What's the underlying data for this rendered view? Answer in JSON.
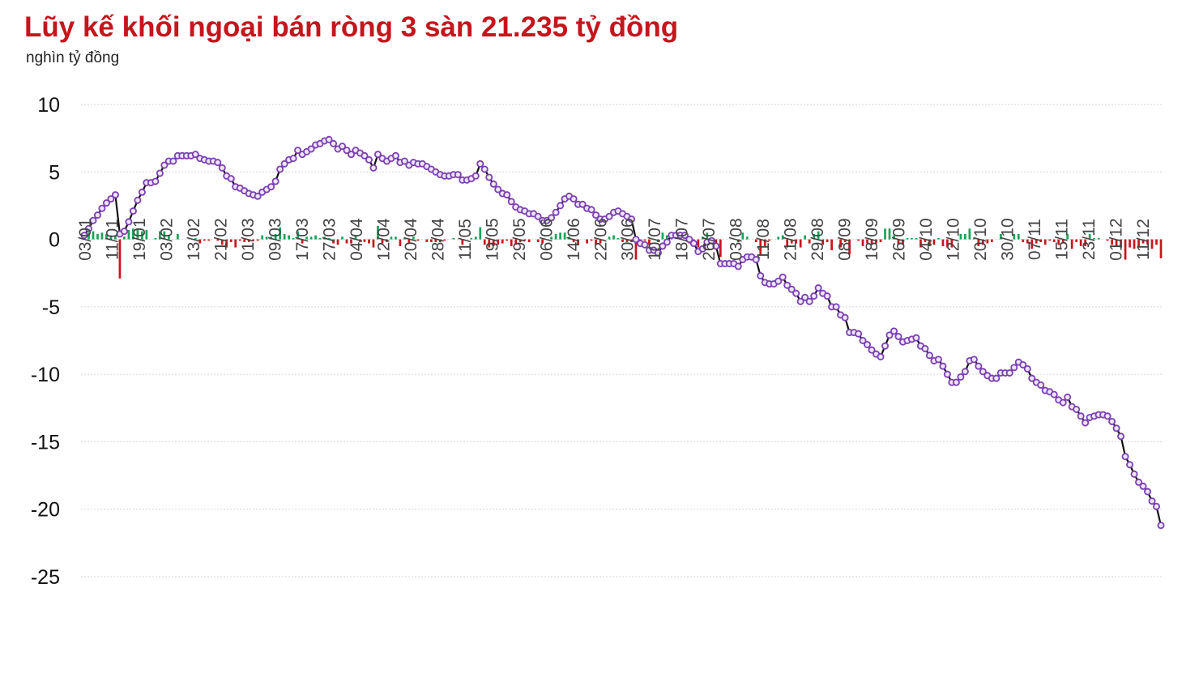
{
  "title": "Lũy kế khối ngoại bán ròng 3 sàn 21.235 tỷ đồng",
  "unit_label": "nghìn tỷ đồng",
  "colors": {
    "title": "#c4161c",
    "line": "#111111",
    "marker_stroke": "#7b3fb3",
    "marker_fill": "#ece6f5",
    "bar_positive": "#1aa35a",
    "bar_negative": "#c8161e",
    "grid": "#d6d6d6"
  },
  "chart_data": {
    "type": "line",
    "title": "Lũy kế khối ngoại bán ròng 3 sàn 21.235 tỷ đồng",
    "ylabel": "nghìn tỷ đồng",
    "ylim": [
      -25,
      10
    ],
    "yticks": [
      10,
      5,
      0,
      -5,
      -10,
      -15,
      -20,
      -25
    ],
    "grid": true,
    "x_tick_labels": [
      "03/01",
      "11/01",
      "19/01",
      "03/02",
      "13/02",
      "21/02",
      "01/03",
      "09/03",
      "17/03",
      "27/03",
      "04/04",
      "12/04",
      "20/04",
      "28/04",
      "11/05",
      "19/05",
      "29/05",
      "06/06",
      "14/06",
      "22/06",
      "30/06",
      "10/07",
      "18/07",
      "26/07",
      "03/08",
      "11/08",
      "21/08",
      "29/08",
      "08/09",
      "18/09",
      "26/09",
      "04/10",
      "12/10",
      "20/10",
      "30/10",
      "07/11",
      "15/11",
      "23/11",
      "01/12",
      "11/12"
    ],
    "series": [
      {
        "type": "line",
        "values": [
          0.3,
          0.8,
          1.4,
          1.8,
          2.3,
          2.7,
          3.0,
          3.3,
          0.4,
          0.6,
          1.3,
          2.1,
          2.9,
          3.5,
          4.2,
          4.2,
          4.3,
          4.9,
          5.5,
          5.8,
          5.8,
          6.2,
          6.2,
          6.2,
          6.2,
          6.3,
          6.0,
          5.9,
          5.8,
          5.8,
          5.7,
          5.3,
          4.7,
          4.5,
          3.9,
          3.8,
          3.6,
          3.4,
          3.3,
          3.2,
          3.5,
          3.7,
          3.9,
          4.3,
          5.2,
          5.6,
          5.9,
          6.0,
          6.6,
          6.3,
          6.5,
          6.7,
          7.0,
          7.1,
          7.3,
          7.4,
          7.1,
          6.7,
          6.9,
          6.6,
          6.3,
          6.6,
          6.4,
          6.2,
          5.9,
          5.3,
          6.3,
          6.0,
          5.8,
          6.0,
          6.2,
          5.7,
          5.8,
          5.5,
          5.7,
          5.6,
          5.6,
          5.4,
          5.2,
          5.0,
          4.8,
          4.7,
          4.7,
          4.8,
          4.8,
          4.4,
          4.4,
          4.5,
          4.7,
          5.6,
          5.2,
          4.6,
          4.1,
          3.7,
          3.4,
          3.3,
          2.8,
          2.4,
          2.2,
          2.1,
          1.9,
          1.9,
          1.7,
          1.4,
          1.4,
          1.6,
          2.0,
          2.5,
          3.0,
          3.2,
          3.0,
          2.6,
          2.6,
          2.3,
          2.2,
          1.8,
          1.5,
          1.5,
          1.7,
          2.0,
          2.1,
          1.9,
          1.7,
          1.5,
          0.0,
          -0.3,
          -0.4,
          -0.8,
          -0.8,
          -1.0,
          -0.5,
          -0.2,
          0.3,
          0.3,
          0.3,
          0.3,
          0.0,
          -0.3,
          -0.9,
          -0.7,
          -0.2,
          -0.1,
          -0.5,
          -1.8,
          -1.8,
          -1.8,
          -1.8,
          -2.0,
          -1.5,
          -1.3,
          -1.3,
          -1.5,
          -2.7,
          -3.2,
          -3.3,
          -3.3,
          -3.1,
          -2.8,
          -3.4,
          -3.7,
          -4.0,
          -4.6,
          -4.3,
          -4.6,
          -4.2,
          -3.6,
          -4.0,
          -4.2,
          -5.0,
          -5.0,
          -5.6,
          -5.8,
          -6.9,
          -6.9,
          -7.0,
          -7.5,
          -7.8,
          -8.2,
          -8.5,
          -8.7,
          -7.9,
          -7.1,
          -6.8,
          -7.2,
          -7.6,
          -7.5,
          -7.4,
          -7.3,
          -7.9,
          -8.1,
          -8.6,
          -9.0,
          -8.9,
          -9.4,
          -10.0,
          -10.6,
          -10.6,
          -10.2,
          -9.8,
          -9.0,
          -8.9,
          -9.4,
          -9.8,
          -10.1,
          -10.3,
          -10.3,
          -9.9,
          -9.9,
          -9.9,
          -9.5,
          -9.1,
          -9.3,
          -9.6,
          -10.3,
          -10.6,
          -10.8,
          -11.2,
          -11.3,
          -11.5,
          -11.9,
          -12.1,
          -11.7,
          -12.4,
          -12.6,
          -13.1,
          -13.6,
          -13.2,
          -13.1,
          -13.0,
          -13.0,
          -13.1,
          -13.5,
          -14.0,
          -14.6,
          -16.1,
          -16.7,
          -17.4,
          -18.0,
          -18.3,
          -18.7,
          -19.4,
          -19.8,
          -21.2
        ]
      },
      {
        "type": "bar",
        "values": [
          0.3,
          0.5,
          0.6,
          0.4,
          0.5,
          0.4,
          0.3,
          0.3,
          -2.9,
          0.2,
          0.7,
          0.8,
          0.8,
          0.6,
          0.7,
          0.0,
          0.1,
          0.6,
          0.6,
          0.3,
          0.0,
          0.4,
          0.0,
          0.0,
          0.0,
          0.1,
          -0.3,
          -0.1,
          -0.1,
          0.0,
          -0.1,
          -0.4,
          -0.6,
          -0.2,
          -0.6,
          -0.1,
          -0.2,
          -0.2,
          -0.1,
          -0.1,
          0.3,
          0.2,
          0.2,
          0.4,
          0.9,
          0.4,
          0.3,
          0.1,
          0.6,
          -0.3,
          0.2,
          0.2,
          0.3,
          0.1,
          0.2,
          0.1,
          -0.3,
          -0.4,
          0.2,
          -0.3,
          -0.3,
          0.3,
          -0.2,
          -0.2,
          -0.3,
          -0.6,
          1.0,
          -0.3,
          -0.2,
          0.2,
          0.2,
          -0.5,
          0.1,
          -0.3,
          0.2,
          -0.1,
          0.0,
          -0.2,
          -0.2,
          -0.2,
          -0.2,
          -0.1,
          0.0,
          0.1,
          0.0,
          -0.4,
          0.0,
          0.1,
          0.2,
          0.9,
          -0.4,
          -0.6,
          -0.5,
          -0.4,
          -0.3,
          -0.1,
          -0.5,
          -0.4,
          -0.2,
          -0.1,
          -0.2,
          0.0,
          -0.2,
          -0.3,
          0.0,
          0.2,
          0.4,
          0.5,
          0.5,
          0.2,
          -0.2,
          -0.4,
          0.0,
          -0.3,
          -0.1,
          -0.4,
          -0.3,
          0.0,
          0.2,
          0.3,
          0.1,
          -0.2,
          -0.2,
          -0.2,
          -1.5,
          -0.3,
          -0.1,
          -0.4,
          0.0,
          -0.2,
          0.5,
          0.3,
          0.5,
          0.0,
          0.0,
          0.0,
          -0.3,
          -0.3,
          -0.6,
          0.2,
          0.5,
          0.1,
          -0.4,
          -1.3,
          0.0,
          0.0,
          0.0,
          -0.2,
          0.5,
          0.2,
          0.0,
          -0.2,
          -1.2,
          -0.5,
          -0.1,
          0.0,
          0.2,
          0.3,
          -0.6,
          -0.3,
          -0.3,
          -0.6,
          0.3,
          -0.3,
          0.4,
          0.6,
          -0.4,
          -0.2,
          -0.8,
          0.0,
          -0.6,
          -0.2,
          -1.1,
          0.0,
          -0.1,
          -0.5,
          -0.3,
          -0.4,
          -0.3,
          -0.2,
          0.8,
          0.8,
          0.3,
          -0.4,
          -0.4,
          0.1,
          0.1,
          0.1,
          -0.6,
          -0.2,
          -0.5,
          -0.4,
          0.1,
          -0.5,
          -0.6,
          -0.6,
          0.0,
          0.4,
          0.4,
          0.8,
          0.1,
          -0.5,
          -0.4,
          -0.3,
          -0.2,
          0.0,
          0.4,
          0.0,
          0.0,
          0.4,
          0.4,
          -0.2,
          -0.3,
          -0.7,
          -0.3,
          -0.2,
          -0.4,
          -0.1,
          -0.2,
          -0.4,
          -0.2,
          0.4,
          -0.7,
          -0.2,
          -0.5,
          -0.5,
          0.4,
          0.1,
          0.1,
          0.0,
          -0.1,
          -0.4,
          -0.5,
          -0.6,
          -1.5,
          -0.6,
          -0.7,
          -0.6,
          -0.3,
          -0.4,
          -0.7,
          -0.4,
          -1.4
        ]
      }
    ]
  }
}
